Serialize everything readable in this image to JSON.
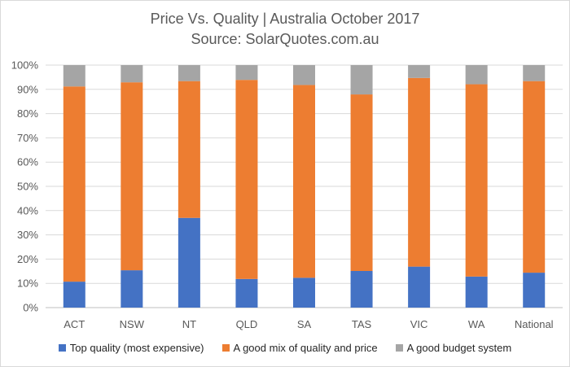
{
  "chart_data": {
    "type": "bar",
    "stacked": true,
    "title": "Price Vs. Quality | Australia October 2017",
    "subtitle": "Source: SolarQuotes.com.au",
    "xlabel": "",
    "ylabel": "",
    "ylim": [
      0,
      100
    ],
    "y_ticks": [
      "0%",
      "10%",
      "20%",
      "30%",
      "40%",
      "50%",
      "60%",
      "70%",
      "80%",
      "90%",
      "100%"
    ],
    "categories": [
      "ACT",
      "NSW",
      "NT",
      "QLD",
      "SA",
      "TAS",
      "VIC",
      "WA",
      "National"
    ],
    "series": [
      {
        "name": "Top quality (most expensive)",
        "color": "#4472c4",
        "values": [
          10.7,
          15.4,
          37.0,
          11.8,
          12.3,
          15.1,
          16.9,
          12.8,
          14.4
        ]
      },
      {
        "name": "A good mix of quality and price",
        "color": "#ed7d31",
        "values": [
          80.5,
          77.5,
          56.4,
          82.1,
          79.5,
          72.8,
          77.8,
          79.3,
          79.0
        ]
      },
      {
        "name": "A good budget system",
        "color": "#a5a5a5",
        "values": [
          8.8,
          7.1,
          6.6,
          6.1,
          8.2,
          12.1,
          5.3,
          7.9,
          6.6
        ]
      }
    ],
    "grid": true,
    "legend_position": "bottom"
  }
}
